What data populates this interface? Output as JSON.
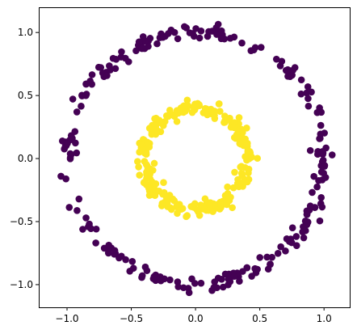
{
  "chart_data": {
    "type": "scatter",
    "title": "",
    "xlabel": "",
    "ylabel": "",
    "xlim": [
      -1.22,
      1.2
    ],
    "ylim": [
      -1.18,
      1.2
    ],
    "xticks": [
      -1.0,
      -0.5,
      0.0,
      0.5,
      1.0
    ],
    "yticks": [
      -1.0,
      -0.5,
      0.0,
      0.5,
      1.0
    ],
    "xtick_labels": [
      "−1.0",
      "−0.5",
      "0.0",
      "0.5",
      "1.0"
    ],
    "ytick_labels": [
      "−1.0",
      "−0.5",
      "0.0",
      "0.5",
      "1.0"
    ],
    "grid": false,
    "legend": "none",
    "series": [
      {
        "color": "#440154",
        "radius_mean": 1.0,
        "radius_noise": 0.05,
        "point_count": 250,
        "description_kind": "outer ring"
      },
      {
        "color": "#fde725",
        "radius_mean": 0.4,
        "radius_noise": 0.05,
        "point_count": 250,
        "description_kind": "inner ring"
      }
    ]
  }
}
